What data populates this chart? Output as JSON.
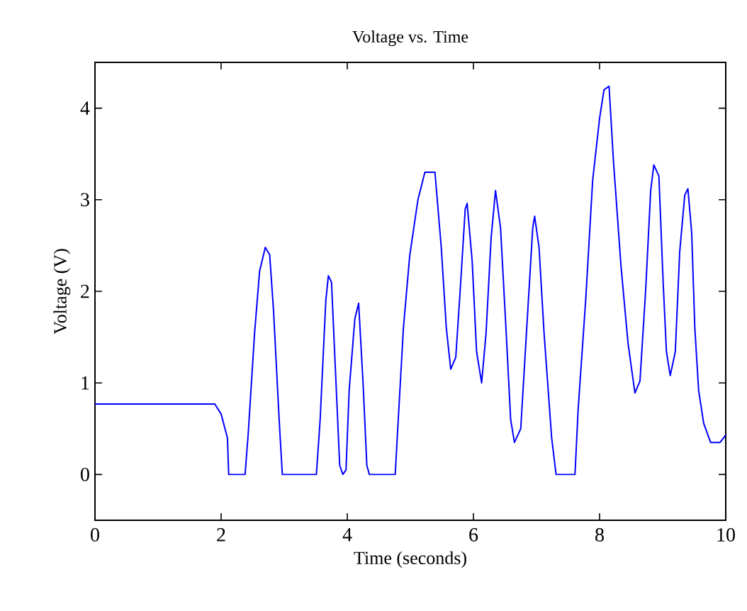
{
  "chart_data": {
    "type": "line",
    "title": "Voltage vs. Time",
    "xlabel": "Time (seconds)",
    "ylabel": "Voltage (V)",
    "xlim": [
      0,
      10
    ],
    "ylim": [
      -0.5,
      4.5
    ],
    "xticks": [
      0,
      2,
      4,
      6,
      8,
      10
    ],
    "yticks": [
      0,
      1,
      2,
      3,
      4
    ],
    "series": [
      {
        "color": "#0000ff",
        "x": [
          0,
          1.9,
          2.0,
          2.1,
          2.12,
          2.38,
          2.43,
          2.53,
          2.61,
          2.7,
          2.77,
          2.83,
          2.92,
          2.97,
          3.51,
          3.57,
          3.66,
          3.7,
          3.75,
          3.82,
          3.88,
          3.93,
          3.98,
          4.03,
          4.12,
          4.18,
          4.25,
          4.31,
          4.35,
          4.76,
          4.8,
          4.89,
          4.99,
          5.12,
          5.23,
          5.39,
          5.49,
          5.57,
          5.64,
          5.72,
          5.79,
          5.87,
          5.9,
          5.98,
          6.05,
          6.13,
          6.2,
          6.28,
          6.35,
          6.43,
          6.52,
          6.59,
          6.65,
          6.75,
          6.84,
          6.94,
          6.97,
          7.04,
          7.12,
          7.24,
          7.31,
          7.61,
          7.66,
          7.78,
          7.89,
          8.0,
          8.07,
          8.15,
          8.22,
          8.34,
          8.45,
          8.56,
          8.64,
          8.73,
          8.81,
          8.86,
          8.94,
          9.01,
          9.06,
          9.12,
          9.2,
          9.27,
          9.35,
          9.4,
          9.46,
          9.51,
          9.57,
          9.65,
          9.76,
          9.91,
          10
        ],
        "values": [
          0.77,
          0.77,
          0.66,
          0.4,
          0,
          0,
          0.45,
          1.54,
          2.22,
          2.48,
          2.4,
          1.8,
          0.6,
          0,
          0,
          0.6,
          1.9,
          2.17,
          2.1,
          1.02,
          0.1,
          0,
          0.05,
          0.92,
          1.7,
          1.87,
          1.0,
          0.1,
          0,
          0,
          0.5,
          1.6,
          2.39,
          3.0,
          3.3,
          3.3,
          2.48,
          1.6,
          1.15,
          1.28,
          2.01,
          2.9,
          2.96,
          2.33,
          1.34,
          1.0,
          1.54,
          2.58,
          3.1,
          2.69,
          1.54,
          0.6,
          0.35,
          0.5,
          1.54,
          2.69,
          2.82,
          2.48,
          1.54,
          0.4,
          0,
          0,
          0.71,
          1.91,
          3.21,
          3.89,
          4.2,
          4.24,
          3.42,
          2.27,
          1.44,
          0.89,
          1.02,
          2.01,
          3.1,
          3.38,
          3.26,
          2.06,
          1.34,
          1.08,
          1.34,
          2.43,
          3.05,
          3.12,
          2.64,
          1.6,
          0.92,
          0.56,
          0.35,
          0.35,
          0.43
        ]
      }
    ]
  }
}
